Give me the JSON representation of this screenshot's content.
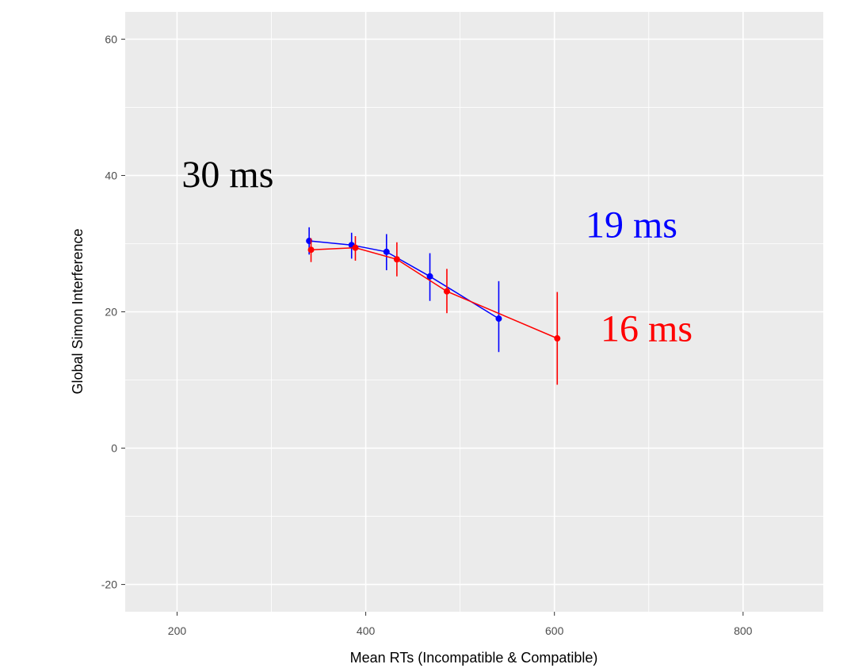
{
  "chart_data": {
    "type": "line",
    "title": "",
    "xlabel": "Mean RTs (Incompatible & Compatible)",
    "ylabel": "Global Simon Interference",
    "xlim": [
      145,
      885
    ],
    "ylim": [
      -24,
      64
    ],
    "x_ticks": [
      200,
      400,
      600,
      800
    ],
    "x_tick_labels": [
      "200",
      "400",
      "600",
      "800"
    ],
    "y_ticks": [
      -20,
      0,
      20,
      40,
      60
    ],
    "y_tick_labels": [
      "-20",
      "0",
      "20",
      "40",
      "60"
    ],
    "grid": true,
    "legend": "none",
    "panel_background": "#ebebeb",
    "series": [
      {
        "color": "#0000ff",
        "points": [
          {
            "x": 340,
            "y": 30.4,
            "lo": 28.4,
            "hi": 32.4
          },
          {
            "x": 385,
            "y": 29.8,
            "lo": 27.8,
            "hi": 31.6
          },
          {
            "x": 422,
            "y": 28.8,
            "lo": 26.1,
            "hi": 31.4
          },
          {
            "x": 468,
            "y": 25.2,
            "lo": 21.6,
            "hi": 28.6
          },
          {
            "x": 541,
            "y": 19.0,
            "lo": 14.1,
            "hi": 24.5
          }
        ]
      },
      {
        "color": "#ff0000",
        "points": [
          {
            "x": 342,
            "y": 29.1,
            "lo": 27.3,
            "hi": 30.8
          },
          {
            "x": 389,
            "y": 29.4,
            "lo": 27.5,
            "hi": 31.1
          },
          {
            "x": 433,
            "y": 27.7,
            "lo": 25.2,
            "hi": 30.2
          },
          {
            "x": 486,
            "y": 23.0,
            "lo": 19.8,
            "hi": 26.3
          },
          {
            "x": 603,
            "y": 16.1,
            "lo": 9.3,
            "hi": 22.9
          }
        ]
      }
    ],
    "annotations": [
      {
        "text": "30 ms",
        "x": 205,
        "y": 38.3,
        "color": "#000000"
      },
      {
        "text": "19 ms",
        "x": 633,
        "y": 30.9,
        "color": "#0000ff"
      },
      {
        "text": "16 ms",
        "x": 649,
        "y": 15.7,
        "color": "#ff0000"
      }
    ]
  }
}
